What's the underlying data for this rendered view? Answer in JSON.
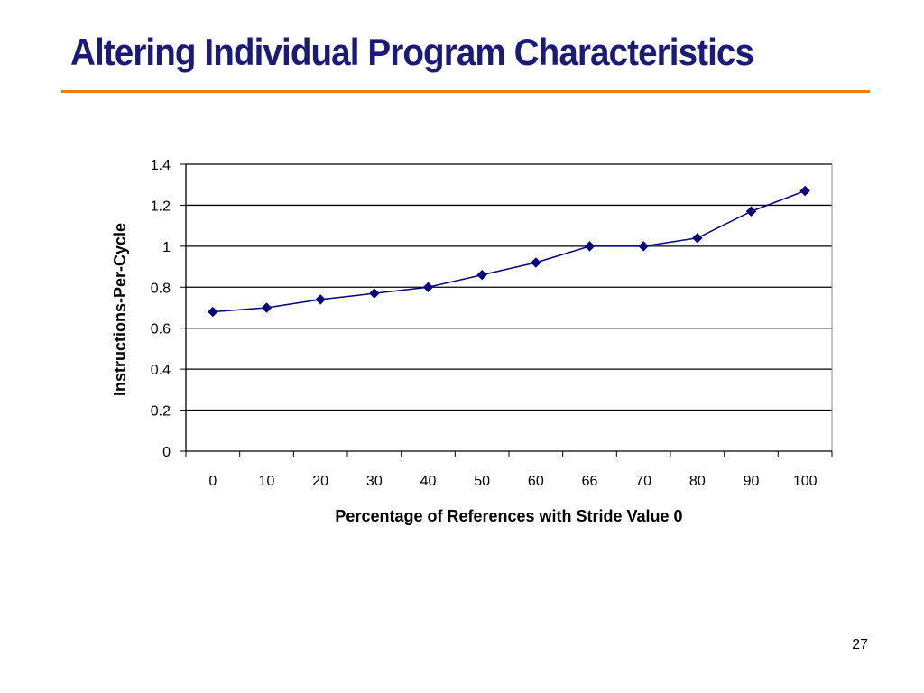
{
  "slide": {
    "title": "Altering Individual Program Characteristics",
    "page_number": "27",
    "colors": {
      "title": "#1a1a7a",
      "rule": "#f07b1a",
      "series": "#000080"
    }
  },
  "chart_data": {
    "type": "line",
    "title": "",
    "xlabel": "Percentage of References with Stride Value 0",
    "ylabel": "Instructions-Per-Cycle",
    "categories": [
      "0",
      "10",
      "20",
      "30",
      "40",
      "50",
      "60",
      "66",
      "70",
      "80",
      "90",
      "100"
    ],
    "series": [
      {
        "values": [
          0.68,
          0.7,
          0.74,
          0.77,
          0.8,
          0.86,
          0.92,
          1.0,
          1.0,
          1.04,
          1.17,
          1.27
        ]
      }
    ],
    "ylim": [
      0,
      1.4
    ],
    "yticks": [
      "0",
      "0.2",
      "0.4",
      "0.6",
      "0.8",
      "1",
      "1.2",
      "1.4"
    ],
    "grid": "horizontal",
    "marker": "diamond",
    "legend": "none"
  }
}
